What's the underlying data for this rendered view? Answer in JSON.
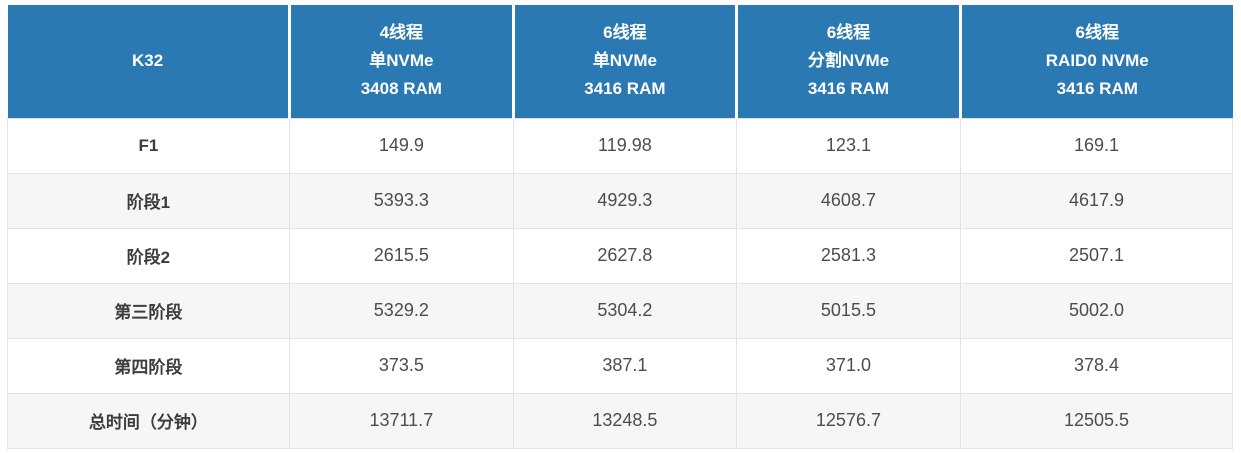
{
  "table": {
    "header": {
      "corner": "K32",
      "columns": [
        {
          "lines": [
            "4线程",
            "单NVMe",
            "3408 RAM"
          ]
        },
        {
          "lines": [
            "6线程",
            "单NVMe",
            "3416 RAM"
          ]
        },
        {
          "lines": [
            "6线程",
            "分割NVMe",
            "3416 RAM"
          ]
        },
        {
          "lines": [
            "6线程",
            "RAID0 NVMe",
            "3416 RAM"
          ]
        }
      ]
    },
    "rows": [
      {
        "label": "F1",
        "values": [
          "149.9",
          "119.98",
          "123.1",
          "169.1"
        ]
      },
      {
        "label": "阶段1",
        "values": [
          "5393.3",
          "4929.3",
          "4608.7",
          "4617.9"
        ]
      },
      {
        "label": "阶段2",
        "values": [
          "2615.5",
          "2627.8",
          "2581.3",
          "2507.1"
        ]
      },
      {
        "label": "第三阶段",
        "values": [
          "5329.2",
          "5304.2",
          "5015.5",
          "5002.0"
        ]
      },
      {
        "label": "第四阶段",
        "values": [
          "373.5",
          "387.1",
          "371.0",
          "378.4"
        ]
      },
      {
        "label": "总时间（分钟）",
        "values": [
          "13711.7",
          "13248.5",
          "12576.7",
          "12505.5"
        ]
      }
    ]
  },
  "colors": {
    "header_bg": "#2b79b3",
    "header_text": "#ffffff",
    "row_alt_bg": "#f6f6f6",
    "row_bg": "#ffffff",
    "border": "#e3e3e3",
    "label_text": "#3d3d3d",
    "value_text": "#4d4d4d"
  },
  "chart_data": {
    "type": "table",
    "title": "K32",
    "categories": [
      "F1",
      "阶段1",
      "阶段2",
      "第三阶段",
      "第四阶段",
      "总时间（分钟）"
    ],
    "series": [
      {
        "name": "4线程 单NVMe 3408 RAM",
        "values": [
          149.9,
          5393.3,
          2615.5,
          5329.2,
          373.5,
          13711.7
        ]
      },
      {
        "name": "6线程 单NVMe 3416 RAM",
        "values": [
          119.98,
          4929.3,
          2627.8,
          5304.2,
          387.1,
          13248.5
        ]
      },
      {
        "name": "6线程 分割NVMe 3416 RAM",
        "values": [
          123.1,
          4608.7,
          2581.3,
          5015.5,
          371.0,
          12576.7
        ]
      },
      {
        "name": "6线程 RAID0 NVMe 3416 RAM",
        "values": [
          169.1,
          4617.9,
          2507.1,
          5002.0,
          378.4,
          12505.5
        ]
      }
    ]
  }
}
